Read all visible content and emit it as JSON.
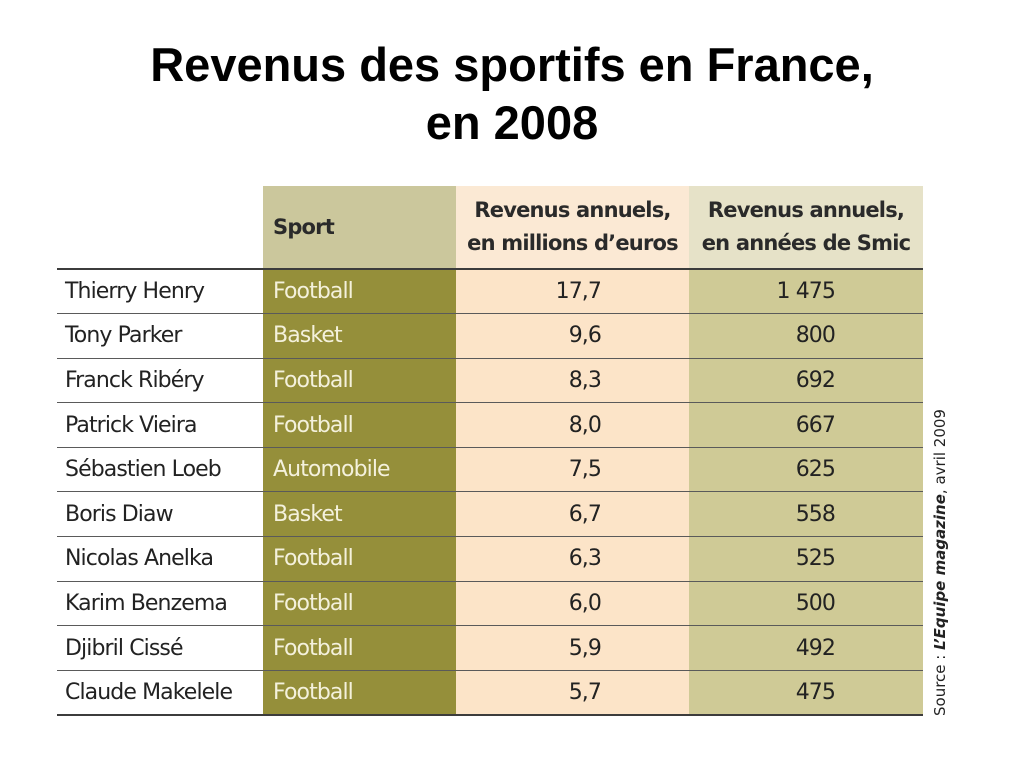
{
  "title": {
    "line1": "Revenus des sportifs en France,",
    "line2": "en 2008"
  },
  "table": {
    "headers": {
      "sport": "Sport",
      "revenus_millions_line1": "Revenus annuels,",
      "revenus_millions_line2": "en millions d’euros",
      "revenus_smic_line1": "Revenus annuels,",
      "revenus_smic_line2": "en années de Smic"
    },
    "rows": [
      {
        "name": "Thierry Henry",
        "sport": "Football",
        "revenus_millions": "17,7",
        "revenus_smic": "1 475"
      },
      {
        "name": "Tony Parker",
        "sport": "Basket",
        "revenus_millions": "9,6",
        "revenus_smic": "800"
      },
      {
        "name": "Franck Ribéry",
        "sport": "Football",
        "revenus_millions": "8,3",
        "revenus_smic": "692"
      },
      {
        "name": "Patrick Vieira",
        "sport": "Football",
        "revenus_millions": "8,0",
        "revenus_smic": "667"
      },
      {
        "name": "Sébastien Loeb",
        "sport": "Automobile",
        "revenus_millions": "7,5",
        "revenus_smic": "625"
      },
      {
        "name": "Boris Diaw",
        "sport": "Basket",
        "revenus_millions": "6,7",
        "revenus_smic": "558"
      },
      {
        "name": "Nicolas Anelka",
        "sport": "Football",
        "revenus_millions": "6,3",
        "revenus_smic": "525"
      },
      {
        "name": "Karim Benzema",
        "sport": "Football",
        "revenus_millions": "6,0",
        "revenus_smic": "500"
      },
      {
        "name": "Djibril Cissé",
        "sport": "Football",
        "revenus_millions": "5,9",
        "revenus_smic": "492"
      },
      {
        "name": "Claude Makelele",
        "sport": "Football",
        "revenus_millions": "5,7",
        "revenus_smic": "475"
      }
    ]
  },
  "source": {
    "prefix": "Source : ",
    "magazine": "L’Equipe magazine",
    "suffix": ", avril 2009"
  },
  "colors": {
    "sport_column": "#958f3a",
    "sport_header": "#cbc79c",
    "revenus_column": "#fce4c8",
    "smic_column": "#cfca96"
  }
}
